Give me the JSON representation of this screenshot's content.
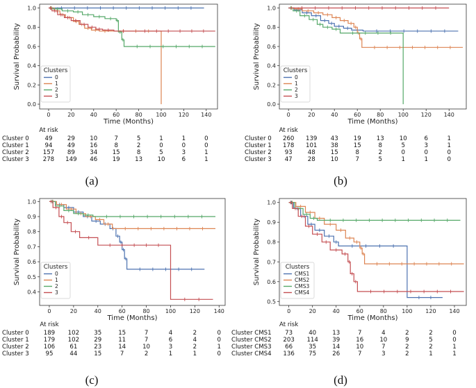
{
  "chart_data": [
    {
      "type": "line",
      "subtype": "kaplan-meier",
      "panel": "(a)",
      "xlabel": "Time (Months)",
      "ylabel": "Survival Probability",
      "xlim": [
        -8,
        150
      ],
      "ylim": [
        -0.05,
        1.04
      ],
      "xticks": [
        0,
        20,
        40,
        60,
        80,
        100,
        120,
        140
      ],
      "yticks": [
        0.0,
        0.2,
        0.4,
        0.6,
        0.8,
        1.0
      ],
      "legend": {
        "title": "Clusters",
        "position": "lower-left"
      },
      "series": [
        {
          "name": "0",
          "color": "#4c72b0",
          "steps": [
            [
              0,
              1.0
            ],
            [
              138,
              1.0
            ]
          ]
        },
        {
          "name": "1",
          "color": "#dd8452",
          "steps": [
            [
              0,
              1.0
            ],
            [
              5,
              0.97
            ],
            [
              10,
              0.93
            ],
            [
              15,
              0.9
            ],
            [
              22,
              0.86
            ],
            [
              27,
              0.83
            ],
            [
              32,
              0.79
            ],
            [
              38,
              0.77
            ],
            [
              45,
              0.76
            ],
            [
              55,
              0.76
            ],
            [
              100,
              0.76
            ],
            [
              100,
              0.0
            ]
          ]
        },
        {
          "name": "2",
          "color": "#55a868",
          "steps": [
            [
              0,
              1.0
            ],
            [
              4,
              0.99
            ],
            [
              12,
              0.97
            ],
            [
              22,
              0.96
            ],
            [
              30,
              0.93
            ],
            [
              40,
              0.91
            ],
            [
              50,
              0.89
            ],
            [
              60,
              0.87
            ],
            [
              62,
              0.75
            ],
            [
              65,
              0.67
            ],
            [
              67,
              0.6
            ],
            [
              148,
              0.6
            ]
          ]
        },
        {
          "name": "3",
          "color": "#c44e52",
          "steps": [
            [
              0,
              1.0
            ],
            [
              3,
              0.97
            ],
            [
              8,
              0.93
            ],
            [
              14,
              0.9
            ],
            [
              20,
              0.87
            ],
            [
              28,
              0.83
            ],
            [
              35,
              0.8
            ],
            [
              42,
              0.78
            ],
            [
              48,
              0.77
            ],
            [
              58,
              0.76
            ],
            [
              75,
              0.76
            ],
            [
              148,
              0.76
            ]
          ]
        }
      ],
      "at_risk": {
        "title": "At risk",
        "times": [
          0,
          20,
          40,
          60,
          80,
          100,
          120,
          140
        ],
        "rows": [
          {
            "label": "Cluster 0",
            "values": [
              49,
              29,
              10,
              7,
              5,
              1,
              1,
              0
            ]
          },
          {
            "label": "Cluster 1",
            "values": [
              94,
              49,
              16,
              8,
              2,
              0,
              0,
              0
            ]
          },
          {
            "label": "Cluster 2",
            "values": [
              157,
              89,
              34,
              15,
              8,
              5,
              3,
              1
            ]
          },
          {
            "label": "Cluster 3",
            "values": [
              278,
              149,
              46,
              19,
              13,
              10,
              6,
              1
            ]
          }
        ]
      }
    },
    {
      "type": "line",
      "subtype": "kaplan-meier",
      "panel": "(b)",
      "xlabel": "Time (Months)",
      "ylabel": "Survival Probability",
      "xlim": [
        -8,
        155
      ],
      "ylim": [
        -0.05,
        1.04
      ],
      "xticks": [
        0,
        20,
        40,
        60,
        80,
        100,
        120,
        140
      ],
      "yticks": [
        0.0,
        0.2,
        0.4,
        0.6,
        0.8,
        1.0
      ],
      "legend": {
        "title": "Clusters",
        "position": "lower-left"
      },
      "series": [
        {
          "name": "0",
          "color": "#4c72b0",
          "steps": [
            [
              0,
              1.0
            ],
            [
              5,
              0.98
            ],
            [
              12,
              0.95
            ],
            [
              20,
              0.92
            ],
            [
              28,
              0.87
            ],
            [
              35,
              0.84
            ],
            [
              40,
              0.81
            ],
            [
              48,
              0.79
            ],
            [
              55,
              0.77
            ],
            [
              65,
              0.76
            ],
            [
              148,
              0.76
            ]
          ]
        },
        {
          "name": "1",
          "color": "#dd8452",
          "steps": [
            [
              0,
              1.0
            ],
            [
              5,
              0.99
            ],
            [
              12,
              0.97
            ],
            [
              22,
              0.95
            ],
            [
              30,
              0.93
            ],
            [
              38,
              0.9
            ],
            [
              45,
              0.87
            ],
            [
              52,
              0.84
            ],
            [
              57,
              0.8
            ],
            [
              60,
              0.74
            ],
            [
              62,
              0.68
            ],
            [
              64,
              0.59
            ],
            [
              152,
              0.59
            ]
          ]
        },
        {
          "name": "2",
          "color": "#55a868",
          "steps": [
            [
              0,
              1.0
            ],
            [
              4,
              0.97
            ],
            [
              10,
              0.92
            ],
            [
              18,
              0.88
            ],
            [
              25,
              0.83
            ],
            [
              30,
              0.8
            ],
            [
              38,
              0.78
            ],
            [
              45,
              0.74
            ],
            [
              100,
              0.74
            ],
            [
              100,
              0.0
            ]
          ]
        },
        {
          "name": "3",
          "color": "#c44e52",
          "steps": [
            [
              0,
              1.0
            ],
            [
              140,
              1.0
            ]
          ]
        }
      ],
      "at_risk": {
        "title": "At risk",
        "times": [
          0,
          20,
          40,
          60,
          80,
          100,
          120,
          140
        ],
        "rows": [
          {
            "label": "Cluster 0",
            "values": [
              260,
              139,
              43,
              19,
              13,
              10,
              6,
              1
            ]
          },
          {
            "label": "Cluster 1",
            "values": [
              178,
              101,
              38,
              15,
              8,
              5,
              3,
              1
            ]
          },
          {
            "label": "Cluster 2",
            "values": [
              93,
              48,
              15,
              8,
              2,
              0,
              0,
              0
            ]
          },
          {
            "label": "Cluster 3",
            "values": [
              47,
              28,
              10,
              7,
              5,
              1,
              1,
              0
            ]
          }
        ]
      }
    },
    {
      "type": "line",
      "subtype": "kaplan-meier",
      "panel": "(c)",
      "xlabel": "Time (Months)",
      "ylabel": "Survival Probability",
      "xlim": [
        -8,
        145
      ],
      "ylim": [
        0.31,
        1.02
      ],
      "xticks": [
        0,
        20,
        40,
        60,
        80,
        100,
        120,
        140
      ],
      "yticks": [
        0.4,
        0.5,
        0.6,
        0.7,
        0.8,
        0.9,
        1.0
      ],
      "legend": {
        "title": "Clusters",
        "position": "lower-left"
      },
      "series": [
        {
          "name": "0",
          "color": "#4c72b0",
          "steps": [
            [
              0,
              1.0
            ],
            [
              5,
              0.98
            ],
            [
              12,
              0.96
            ],
            [
              20,
              0.93
            ],
            [
              28,
              0.9
            ],
            [
              35,
              0.87
            ],
            [
              42,
              0.85
            ],
            [
              50,
              0.82
            ],
            [
              55,
              0.77
            ],
            [
              58,
              0.73
            ],
            [
              60,
              0.68
            ],
            [
              62,
              0.62
            ],
            [
              64,
              0.55
            ],
            [
              128,
              0.55
            ]
          ]
        },
        {
          "name": "1",
          "color": "#dd8452",
          "steps": [
            [
              0,
              1.0
            ],
            [
              6,
              0.98
            ],
            [
              14,
              0.95
            ],
            [
              22,
              0.92
            ],
            [
              30,
              0.9
            ],
            [
              38,
              0.88
            ],
            [
              45,
              0.85
            ],
            [
              52,
              0.82
            ],
            [
              137,
              0.82
            ]
          ]
        },
        {
          "name": "2",
          "color": "#55a868",
          "steps": [
            [
              0,
              1.0
            ],
            [
              5,
              0.97
            ],
            [
              12,
              0.94
            ],
            [
              20,
              0.92
            ],
            [
              28,
              0.91
            ],
            [
              36,
              0.9
            ],
            [
              137,
              0.9
            ]
          ]
        },
        {
          "name": "3",
          "color": "#c44e52",
          "steps": [
            [
              0,
              1.0
            ],
            [
              3,
              0.96
            ],
            [
              8,
              0.9
            ],
            [
              12,
              0.86
            ],
            [
              18,
              0.8
            ],
            [
              25,
              0.76
            ],
            [
              40,
              0.71
            ],
            [
              100,
              0.71
            ],
            [
              100,
              0.35
            ],
            [
              135,
              0.35
            ]
          ]
        }
      ],
      "at_risk": {
        "title": "At risk",
        "times": [
          0,
          20,
          40,
          60,
          80,
          100,
          120,
          140
        ],
        "rows": [
          {
            "label": "Cluster 0",
            "values": [
              189,
              102,
              35,
              15,
              7,
              4,
              2,
              0
            ]
          },
          {
            "label": "Cluster 1",
            "values": [
              179,
              102,
              29,
              11,
              7,
              6,
              4,
              0
            ]
          },
          {
            "label": "Cluster 2",
            "values": [
              106,
              61,
              23,
              14,
              10,
              3,
              2,
              1
            ]
          },
          {
            "label": "Cluster 3",
            "values": [
              95,
              44,
              15,
              7,
              2,
              1,
              1,
              0
            ]
          }
        ]
      }
    },
    {
      "type": "line",
      "subtype": "kaplan-meier",
      "panel": "(d)",
      "xlabel": "Time (Months)",
      "ylabel": "Survival Probability",
      "xlim": [
        -8,
        150
      ],
      "ylim": [
        0.48,
        1.02
      ],
      "xticks": [
        0,
        20,
        40,
        60,
        80,
        100,
        120,
        140
      ],
      "yticks": [
        0.5,
        0.6,
        0.7,
        0.8,
        0.9,
        1.0
      ],
      "legend": {
        "title": "Clusters",
        "position": "lower-left"
      },
      "series": [
        {
          "name": "CMS1",
          "color": "#4c72b0",
          "steps": [
            [
              0,
              1.0
            ],
            [
              4,
              0.97
            ],
            [
              10,
              0.93
            ],
            [
              16,
              0.89
            ],
            [
              22,
              0.86
            ],
            [
              30,
              0.83
            ],
            [
              38,
              0.8
            ],
            [
              42,
              0.78
            ],
            [
              100,
              0.78
            ],
            [
              100,
              0.52
            ],
            [
              130,
              0.52
            ]
          ]
        },
        {
          "name": "CMS2",
          "color": "#dd8452",
          "steps": [
            [
              0,
              1.0
            ],
            [
              6,
              0.98
            ],
            [
              14,
              0.95
            ],
            [
              22,
              0.92
            ],
            [
              30,
              0.89
            ],
            [
              40,
              0.86
            ],
            [
              48,
              0.82
            ],
            [
              55,
              0.8
            ],
            [
              60,
              0.77
            ],
            [
              62,
              0.74
            ],
            [
              64,
              0.69
            ],
            [
              148,
              0.69
            ]
          ]
        },
        {
          "name": "CMS3",
          "color": "#55a868",
          "steps": [
            [
              0,
              1.0
            ],
            [
              5,
              0.97
            ],
            [
              12,
              0.94
            ],
            [
              18,
              0.92
            ],
            [
              24,
              0.91
            ],
            [
              145,
              0.91
            ]
          ]
        },
        {
          "name": "CMS4",
          "color": "#c44e52",
          "steps": [
            [
              0,
              1.0
            ],
            [
              3,
              0.97
            ],
            [
              8,
              0.93
            ],
            [
              14,
              0.88
            ],
            [
              20,
              0.84
            ],
            [
              28,
              0.8
            ],
            [
              35,
              0.76
            ],
            [
              45,
              0.74
            ],
            [
              50,
              0.7
            ],
            [
              52,
              0.64
            ],
            [
              55,
              0.6
            ],
            [
              58,
              0.55
            ],
            [
              148,
              0.55
            ]
          ]
        }
      ],
      "at_risk": {
        "title": "At risk",
        "times": [
          0,
          20,
          40,
          60,
          80,
          100,
          120,
          140
        ],
        "rows": [
          {
            "label": "Cluster CMS1",
            "values": [
              73,
              40,
              13,
              7,
              4,
              2,
              2,
              0
            ]
          },
          {
            "label": "Cluster CMS2",
            "values": [
              203,
              114,
              39,
              16,
              10,
              9,
              5,
              0
            ]
          },
          {
            "label": "Cluster CMS3",
            "values": [
              66,
              35,
              14,
              10,
              7,
              2,
              2,
              1
            ]
          },
          {
            "label": "Cluster CMS4",
            "values": [
              136,
              75,
              26,
              7,
              3,
              2,
              1,
              1
            ]
          }
        ]
      }
    }
  ]
}
